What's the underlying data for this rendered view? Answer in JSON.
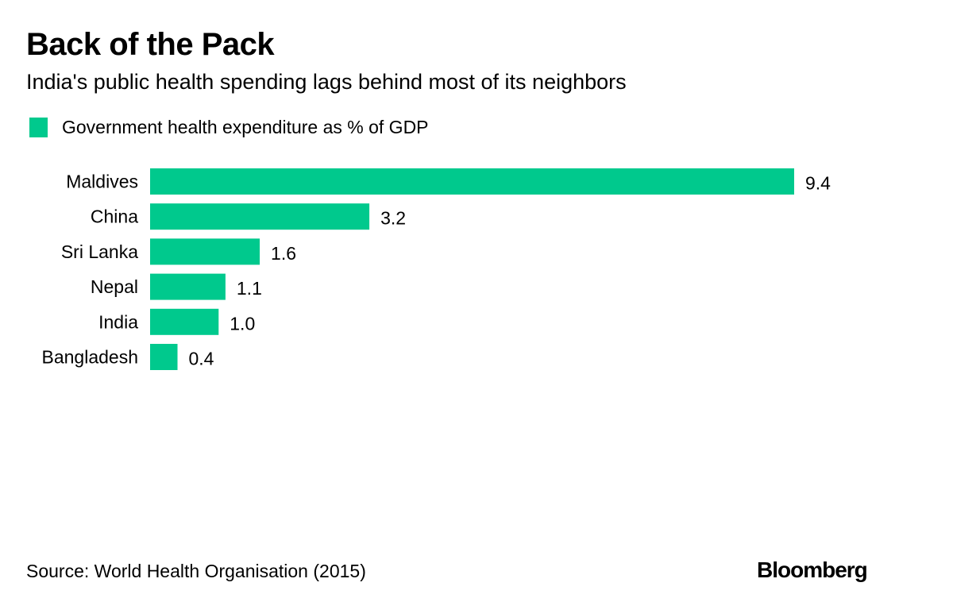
{
  "header": {
    "title": "Back of the Pack",
    "subtitle": "India's public health spending lags behind most of its neighbors"
  },
  "footer": {
    "source": "Source: World Health Organisation (2015)",
    "brand": "Bloomberg"
  },
  "colors": {
    "bar": "#00c98d",
    "text": "#000000",
    "background": "#ffffff"
  },
  "chart_data": {
    "type": "bar",
    "orientation": "horizontal",
    "title": "Back of the Pack",
    "subtitle": "India's public health spending lags behind most of its neighbors",
    "categories": [
      "Maldives",
      "China",
      "Sri Lanka",
      "Nepal",
      "India",
      "Bangladesh"
    ],
    "series": [
      {
        "name": "Government health expenditure as % of GDP",
        "values": [
          9.4,
          3.2,
          1.6,
          1.1,
          1.0,
          0.4
        ],
        "labels": [
          "9.4",
          "3.2",
          "1.6",
          "1.1",
          "1.0",
          "0.4"
        ]
      }
    ],
    "xlabel": "",
    "ylabel": "",
    "xlim": [
      0,
      9.4
    ],
    "grid": false,
    "legend": {
      "position": "top-left",
      "entries": [
        "Government health expenditure as % of GDP"
      ]
    },
    "source": "Source: World Health Organisation (2015)"
  }
}
